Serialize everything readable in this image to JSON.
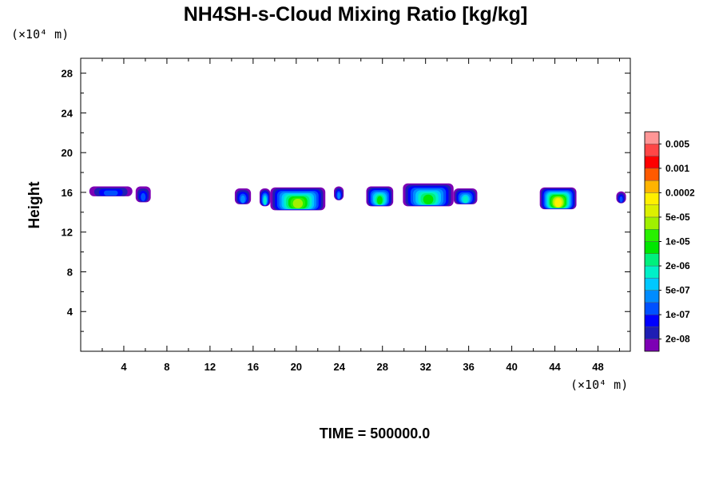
{
  "chart_data": {
    "type": "heatmap",
    "title": "NH4SH-s-Cloud Mixing Ratio [kg/kg]",
    "ylabel": "Height",
    "x_unit": "(×10⁴ m)",
    "y_unit": "(×10⁴ m)",
    "footer": "TIME = 500000.0",
    "xlim": [
      0,
      51
    ],
    "ylim": [
      0,
      29.5
    ],
    "x_ticks": [
      4,
      8,
      12,
      16,
      20,
      24,
      28,
      32,
      36,
      40,
      44,
      48
    ],
    "y_ticks": [
      4,
      8,
      12,
      16,
      20,
      24,
      28
    ],
    "x_tick_labels": [
      "4",
      "8",
      "12",
      "16",
      "20",
      "24",
      "28",
      "32",
      "36",
      "40",
      "44",
      "48"
    ],
    "y_tick_labels": [
      "4",
      "8",
      "12",
      "16",
      "20",
      "24",
      "28"
    ],
    "colorbar": {
      "colors": [
        "#7d00b4",
        "#1e1eb4",
        "#0000ff",
        "#0050ff",
        "#008cff",
        "#00c8ff",
        "#00f0c8",
        "#00f07d",
        "#00e600",
        "#28f000",
        "#a0f000",
        "#dcf000",
        "#fff000",
        "#ffb400",
        "#ff5a00",
        "#ff0000",
        "#ff4646",
        "#ff9696"
      ],
      "labels": [
        "2e-08",
        "1e-07",
        "5e-07",
        "2e-06",
        "1e-05",
        "5e-05",
        "0.0002",
        "0.001",
        "0.005"
      ]
    },
    "cloud_patches": [
      {
        "x": [
          0.8,
          4.8
        ],
        "z": [
          15.6,
          16.6
        ],
        "max_level": 3
      },
      {
        "x": [
          5.1,
          6.5
        ],
        "z": [
          15.0,
          16.6
        ],
        "max_level": 3
      },
      {
        "x": [
          14.3,
          15.8
        ],
        "z": [
          14.8,
          16.4
        ],
        "max_level": 4
      },
      {
        "x": [
          16.6,
          17.6
        ],
        "z": [
          14.6,
          16.4
        ],
        "max_level": 6
      },
      {
        "x": [
          17.6,
          22.7
        ],
        "z": [
          14.2,
          16.5
        ],
        "max_level": 10
      },
      {
        "x": [
          23.5,
          24.4
        ],
        "z": [
          15.2,
          16.6
        ],
        "max_level": 4
      },
      {
        "x": [
          26.5,
          29.0
        ],
        "z": [
          14.6,
          16.6
        ],
        "max_level": 8
      },
      {
        "x": [
          29.9,
          34.6
        ],
        "z": [
          14.6,
          16.9
        ],
        "max_level": 8
      },
      {
        "x": [
          34.6,
          36.8
        ],
        "z": [
          14.8,
          16.4
        ],
        "max_level": 6
      },
      {
        "x": [
          42.6,
          46.0
        ],
        "z": [
          14.3,
          16.5
        ],
        "max_level": 12
      },
      {
        "x": [
          49.7,
          50.6
        ],
        "z": [
          14.9,
          16.1
        ],
        "max_level": 3
      }
    ]
  }
}
